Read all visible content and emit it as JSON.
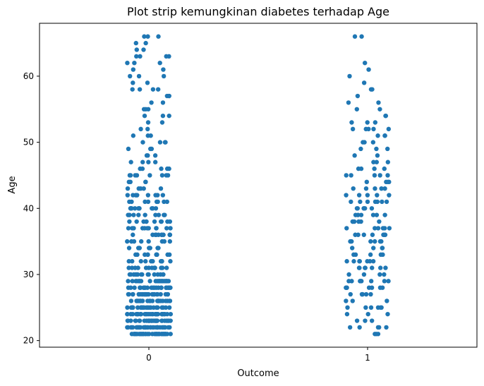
{
  "chart_data": {
    "type": "scatter",
    "subtype": "strip",
    "title": "Plot strip kemungkinan diabetes terhadap Age",
    "xlabel": "Outcome",
    "ylabel": "Age",
    "categories": [
      "0",
      "1"
    ],
    "xlim": [
      -0.5,
      1.5
    ],
    "ylim": [
      19,
      68
    ],
    "yticks": [
      20,
      30,
      40,
      50,
      60
    ],
    "grid": false,
    "point_color": "#1f77b4",
    "series": [
      {
        "category": "0",
        "ages": [
          21,
          21,
          21,
          21,
          21,
          21,
          21,
          21,
          21,
          21,
          21,
          21,
          21,
          21,
          21,
          21,
          21,
          21,
          21,
          21,
          21,
          21,
          21,
          21,
          21,
          21,
          21,
          21,
          21,
          21,
          21,
          21,
          21,
          21,
          21,
          21,
          22,
          22,
          22,
          22,
          22,
          22,
          22,
          22,
          22,
          22,
          22,
          22,
          22,
          22,
          22,
          22,
          22,
          22,
          22,
          22,
          22,
          22,
          22,
          22,
          22,
          22,
          22,
          22,
          22,
          22,
          22,
          22,
          22,
          22,
          22,
          22,
          22,
          22,
          23,
          23,
          23,
          23,
          23,
          23,
          23,
          23,
          23,
          23,
          23,
          23,
          23,
          23,
          23,
          23,
          23,
          23,
          23,
          23,
          23,
          23,
          23,
          23,
          23,
          23,
          23,
          23,
          23,
          23,
          24,
          24,
          24,
          24,
          24,
          24,
          24,
          24,
          24,
          24,
          24,
          24,
          24,
          24,
          24,
          24,
          24,
          24,
          24,
          24,
          24,
          24,
          24,
          24,
          24,
          24,
          24,
          24,
          24,
          24,
          24,
          24,
          25,
          25,
          25,
          25,
          25,
          25,
          25,
          25,
          25,
          25,
          25,
          25,
          25,
          25,
          25,
          25,
          25,
          25,
          25,
          25,
          25,
          25,
          25,
          25,
          25,
          25,
          25,
          25,
          26,
          26,
          26,
          26,
          26,
          26,
          26,
          26,
          26,
          26,
          26,
          26,
          26,
          26,
          26,
          26,
          26,
          26,
          26,
          26,
          26,
          26,
          26,
          26,
          26,
          27,
          27,
          27,
          27,
          27,
          27,
          27,
          27,
          27,
          27,
          27,
          27,
          27,
          27,
          27,
          27,
          27,
          27,
          27,
          27,
          27,
          27,
          27,
          27,
          27,
          28,
          28,
          28,
          28,
          28,
          28,
          28,
          28,
          28,
          28,
          28,
          28,
          28,
          28,
          28,
          28,
          28,
          28,
          28,
          28,
          28,
          28,
          29,
          29,
          29,
          29,
          29,
          29,
          29,
          29,
          29,
          29,
          29,
          29,
          29,
          29,
          29,
          29,
          29,
          29,
          29,
          29,
          30,
          30,
          30,
          30,
          30,
          30,
          30,
          30,
          30,
          30,
          30,
          30,
          30,
          30,
          30,
          31,
          31,
          31,
          31,
          31,
          31,
          31,
          31,
          31,
          31,
          31,
          31,
          31,
          32,
          32,
          32,
          32,
          32,
          32,
          32,
          32,
          32,
          32,
          33,
          33,
          33,
          33,
          33,
          33,
          33,
          33,
          33,
          33,
          34,
          34,
          34,
          34,
          34,
          34,
          34,
          35,
          35,
          35,
          35,
          35,
          35,
          35,
          35,
          36,
          36,
          36,
          36,
          36,
          36,
          36,
          36,
          36,
          36,
          37,
          37,
          37,
          37,
          37,
          37,
          37,
          37,
          37,
          37,
          37,
          38,
          38,
          38,
          38,
          38,
          38,
          38,
          38,
          38,
          38,
          39,
          39,
          39,
          39,
          39,
          39,
          39,
          39,
          39,
          40,
          40,
          40,
          40,
          40,
          40,
          40,
          40,
          40,
          40,
          40,
          41,
          41,
          41,
          41,
          41,
          41,
          41,
          41,
          42,
          42,
          42,
          42,
          42,
          42,
          42,
          42,
          42,
          43,
          43,
          43,
          43,
          43,
          44,
          44,
          44,
          44,
          45,
          45,
          45,
          45,
          45,
          45,
          45,
          45,
          46,
          46,
          46,
          46,
          46,
          47,
          47,
          47,
          47,
          48,
          48,
          48,
          49,
          49,
          49,
          50,
          50,
          50,
          50,
          51,
          51,
          51,
          52,
          52,
          53,
          53,
          54,
          54,
          54,
          55,
          55,
          55,
          56,
          56,
          57,
          57,
          57,
          58,
          58,
          58,
          58,
          59,
          59,
          60,
          60,
          60,
          61,
          61,
          62,
          62,
          62,
          63,
          63,
          63,
          63,
          64,
          64,
          65,
          65,
          66,
          66,
          66
        ]
      },
      {
        "category": "1",
        "ages": [
          21,
          21,
          21,
          22,
          22,
          22,
          22,
          22,
          23,
          23,
          23,
          24,
          24,
          24,
          25,
          25,
          25,
          25,
          25,
          25,
          26,
          26,
          26,
          27,
          27,
          27,
          27,
          27,
          27,
          28,
          28,
          28,
          28,
          28,
          28,
          28,
          29,
          29,
          29,
          29,
          29,
          29,
          29,
          29,
          30,
          30,
          30,
          30,
          31,
          31,
          31,
          31,
          31,
          31,
          31,
          32,
          32,
          32,
          32,
          32,
          32,
          32,
          33,
          33,
          33,
          33,
          33,
          34,
          34,
          34,
          34,
          35,
          35,
          35,
          35,
          35,
          35,
          36,
          36,
          36,
          36,
          36,
          36,
          36,
          37,
          37,
          37,
          37,
          37,
          37,
          38,
          38,
          38,
          38,
          38,
          38,
          39,
          39,
          39,
          39,
          39,
          39,
          40,
          40,
          40,
          40,
          40,
          40,
          41,
          41,
          41,
          41,
          41,
          41,
          41,
          42,
          42,
          42,
          42,
          42,
          43,
          43,
          43,
          43,
          43,
          44,
          44,
          44,
          44,
          45,
          45,
          45,
          45,
          45,
          46,
          46,
          46,
          46,
          47,
          47,
          47,
          48,
          48,
          49,
          49,
          49,
          50,
          50,
          50,
          51,
          51,
          51,
          52,
          52,
          52,
          52,
          52,
          53,
          53,
          53,
          54,
          54,
          55,
          55,
          56,
          56,
          57,
          58,
          58,
          59,
          60,
          61,
          62,
          66,
          66
        ]
      }
    ]
  }
}
